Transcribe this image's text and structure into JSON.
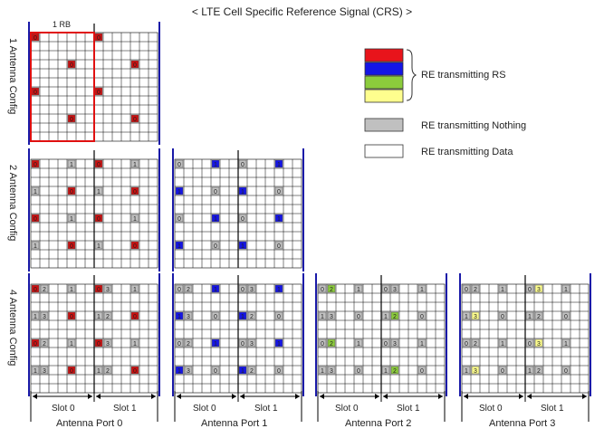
{
  "title": "< LTE Cell Specific Reference Signal (CRS) >",
  "config_labels": [
    "1 Antenna Config",
    "2 Antenna Config",
    "4 Antenna Config"
  ],
  "rb_label": "1 RB",
  "legend": {
    "rs_label": "RE transmitting RS",
    "nothing_label": "RE transmitting Nothing",
    "data_label": "RE transmitting Data",
    "rs_colors": [
      "#e8141b",
      "#1515e6",
      "#8ccc3c",
      "#fefe8e"
    ],
    "nothing_color": "#c0c0c0",
    "data_color": "#ffffff"
  },
  "slot_labels": [
    "Slot 0",
    "Slot 1"
  ],
  "ports": [
    {
      "label": "Antenna Port 0",
      "color": "#cc1111"
    },
    {
      "label": "Antenna Port 1",
      "color": "#1515e6"
    },
    {
      "label": "Antenna Port 2",
      "color": "#8ccc3c"
    },
    {
      "label": "Antenna Port 3",
      "color": "#fefe8e"
    }
  ],
  "grid_symbols_per_slot": 7,
  "grid_subcarriers": 12,
  "cell_texts": {
    "p0": "0",
    "p1": "1",
    "p2": "2",
    "p3": "3"
  }
}
